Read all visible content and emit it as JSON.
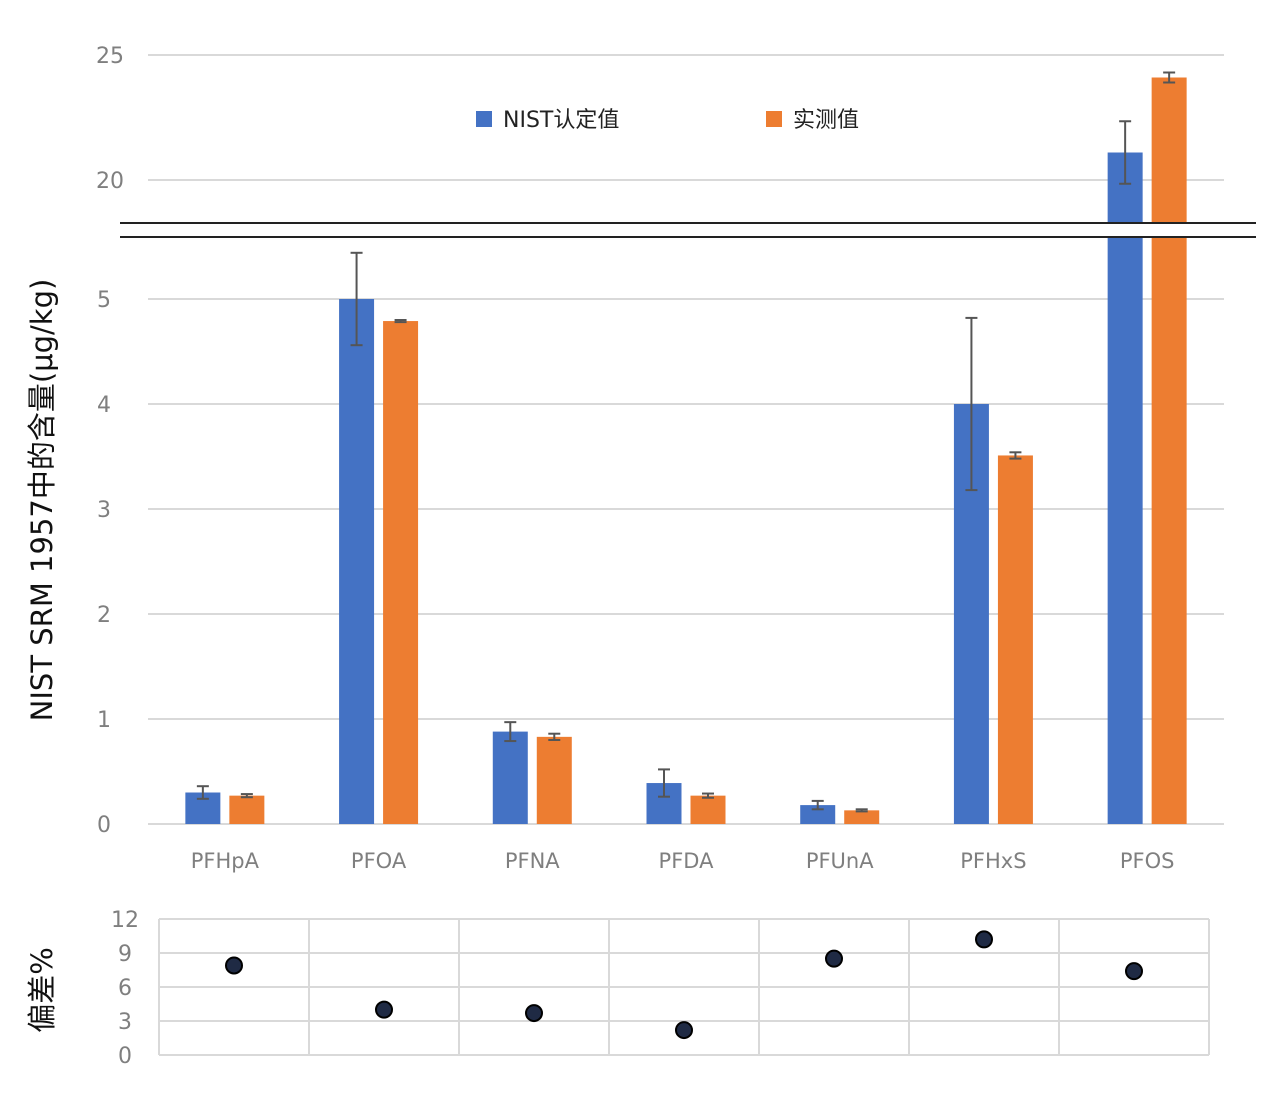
{
  "chart_data": [
    {
      "type": "bar",
      "ylabel": "NIST SRM 1957中的含量(μg/kg)",
      "categories": [
        "PFHpA",
        "PFOA",
        "PFNA",
        "PFDA",
        "PFUnA",
        "PFHxS",
        "PFOS"
      ],
      "series": [
        {
          "name": "NIST认定值",
          "color": "#4472C4",
          "values": [
            0.3,
            5.0,
            0.88,
            0.39,
            0.18,
            4.0,
            21.1
          ],
          "error": [
            0.06,
            0.44,
            0.09,
            0.13,
            0.04,
            0.82,
            1.25
          ]
        },
        {
          "name": "实测值",
          "color": "#ED7D31",
          "values": [
            0.27,
            4.79,
            0.83,
            0.27,
            0.13,
            3.51,
            24.1
          ],
          "error": [
            0.015,
            0.01,
            0.03,
            0.02,
            0.01,
            0.03,
            0.2
          ]
        }
      ],
      "axis_break": true,
      "lower_axis_ticks": [
        0,
        1,
        2,
        3,
        4,
        5
      ],
      "lower_axis_range": [
        0,
        5.5
      ],
      "upper_axis_ticks": [
        20,
        25
      ],
      "upper_axis_range": [
        18.2,
        25
      ],
      "grid": true,
      "legend_placement": "top-center"
    },
    {
      "type": "scatter",
      "ylabel": "偏差%",
      "categories": [
        "PFHpA",
        "PFOA",
        "PFNA",
        "PFDA",
        "PFUnA",
        "PFHxS",
        "PFOS"
      ],
      "values": [
        7.9,
        4.0,
        3.7,
        2.2,
        8.5,
        10.2,
        7.4
      ],
      "yticks": [
        0,
        3,
        6,
        9,
        12
      ],
      "ylim": [
        0,
        12
      ],
      "grid": true,
      "marker_color": "#1F2A44"
    }
  ]
}
